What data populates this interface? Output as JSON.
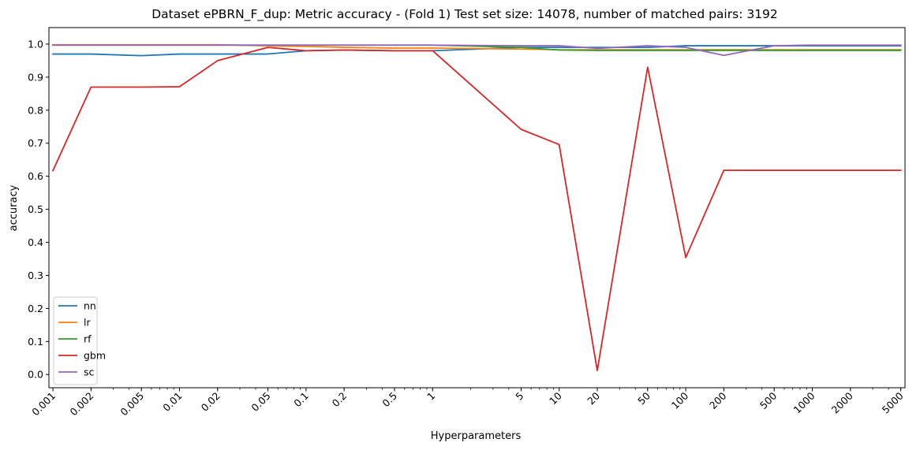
{
  "chart_data": {
    "type": "line",
    "title": "Dataset ePBRN_F_dup: Metric accuracy - (Fold 1) Test set size: 14078, number of matched pairs: 3192",
    "xlabel": "Hyperparameters",
    "ylabel": "accuracy",
    "x_scale": "log",
    "xlim": [
      0.00093,
      5400
    ],
    "ylim": [
      -0.04,
      1.05
    ],
    "grid": false,
    "legend_position": "lower-left",
    "x": [
      0.001,
      0.002,
      0.005,
      0.01,
      0.02,
      0.05,
      0.1,
      0.2,
      0.5,
      1,
      5,
      10,
      20,
      50,
      100,
      200,
      500,
      1000,
      2000,
      5000
    ],
    "x_tick_labels": [
      "0.001",
      "0.002",
      "0.005",
      "0.01",
      "0.02",
      "0.05",
      "0.1",
      "0.2",
      "0.5",
      "1",
      "5",
      "10",
      "20",
      "50",
      "100",
      "200",
      "500",
      "1000",
      "2000",
      "5000"
    ],
    "y_ticks": [
      0.0,
      0.1,
      0.2,
      0.3,
      0.4,
      0.5,
      0.6,
      0.7,
      0.8,
      0.9,
      1.0
    ],
    "y_tick_labels": [
      "0.0",
      "0.1",
      "0.2",
      "0.3",
      "0.4",
      "0.5",
      "0.6",
      "0.7",
      "0.8",
      "0.9",
      "1.0"
    ],
    "series": [
      {
        "name": "nn",
        "color": "#1f77b4",
        "values": [
          0.97,
          0.97,
          0.965,
          0.97,
          0.97,
          0.97,
          0.98,
          0.982,
          0.98,
          0.98,
          0.99,
          0.99,
          0.99,
          0.99,
          0.995,
          0.995,
          0.995,
          0.995,
          0.995,
          0.995
        ]
      },
      {
        "name": "lr",
        "color": "#ff7f0e",
        "values": [
          0.998,
          0.998,
          0.998,
          0.998,
          0.998,
          0.995,
          0.993,
          0.99,
          0.988,
          0.988,
          0.985,
          0.983,
          0.983,
          0.983,
          0.983,
          0.983,
          0.983,
          0.983,
          0.983,
          0.983
        ]
      },
      {
        "name": "rf",
        "color": "#2ca02c",
        "values": [
          0.997,
          0.997,
          0.997,
          0.997,
          0.997,
          0.997,
          0.997,
          0.997,
          0.997,
          0.997,
          0.99,
          0.982,
          0.981,
          0.981,
          0.981,
          0.981,
          0.981,
          0.981,
          0.981,
          0.981
        ]
      },
      {
        "name": "gbm",
        "color": "#d62728",
        "values": [
          0.617,
          0.87,
          0.87,
          0.871,
          0.95,
          0.99,
          0.98,
          0.982,
          0.98,
          0.98,
          0.742,
          0.696,
          0.012,
          0.93,
          0.354,
          0.618,
          0.618,
          0.618,
          0.618,
          0.618
        ]
      },
      {
        "name": "sc",
        "color": "#9467bd",
        "values": [
          0.997,
          0.997,
          0.997,
          0.997,
          0.997,
          0.997,
          0.997,
          0.997,
          0.997,
          0.997,
          0.995,
          0.995,
          0.987,
          0.995,
          0.99,
          0.966,
          0.995,
          0.997,
          0.997,
          0.997
        ]
      }
    ]
  }
}
